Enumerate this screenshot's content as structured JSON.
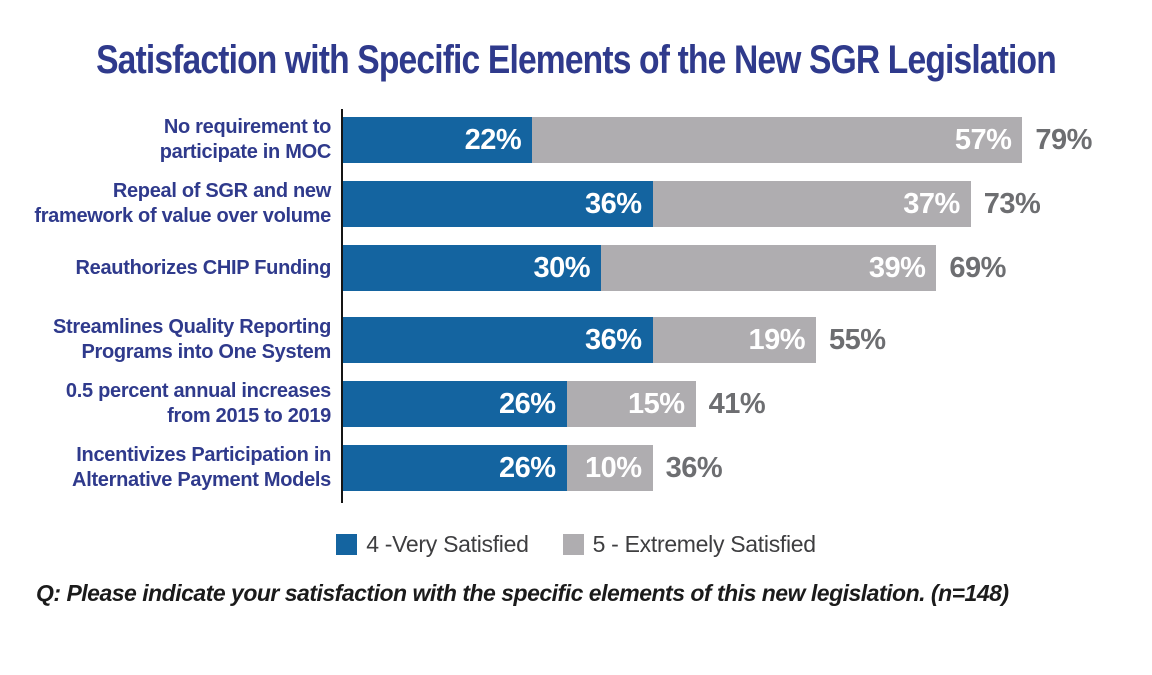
{
  "title": "Satisfaction with Specific Elements of the New SGR Legislation",
  "chart_data": {
    "type": "bar",
    "orientation": "horizontal",
    "stacked": true,
    "title": "Satisfaction with Specific Elements of the New SGR Legislation",
    "categories": [
      "No requirement to\nparticipate in MOC",
      "Repeal of SGR and new\nframework of value over volume",
      "Reauthorizes CHIP Funding",
      "Streamlines Quality Reporting\nPrograms into One System",
      "0.5 percent annual increases\nfrom 2015 to 2019",
      "Incentivizes Participation in\nAlternative Payment Models"
    ],
    "series": [
      {
        "name": "4 -Very Satisfied",
        "color": "#1464A0",
        "values": [
          22,
          36,
          30,
          36,
          26,
          26
        ]
      },
      {
        "name": "5 - Extremely Satisfied",
        "color": "#AFADB0",
        "values": [
          57,
          37,
          39,
          19,
          15,
          10
        ]
      }
    ],
    "totals": [
      79,
      73,
      69,
      55,
      41,
      36
    ],
    "value_suffix": "%",
    "xlim": [
      0,
      100
    ],
    "grid": false,
    "legend_position": "bottom"
  },
  "footer": "Q: Please indicate your satisfaction with the specific elements of this new legislation. (n=148)",
  "colors": {
    "title_text": "#2F3A8C",
    "category_label_text": "#2F3A8C",
    "series_blue": "#1464A0",
    "series_gray": "#AFADB0",
    "segment_value_text": "#FFFFFF",
    "total_value_text": "#6D6E71",
    "axis_line": "#151515",
    "legend_text": "#3E3E40",
    "footer_text": "#1B1B1B",
    "background": "#FFFFFF"
  }
}
